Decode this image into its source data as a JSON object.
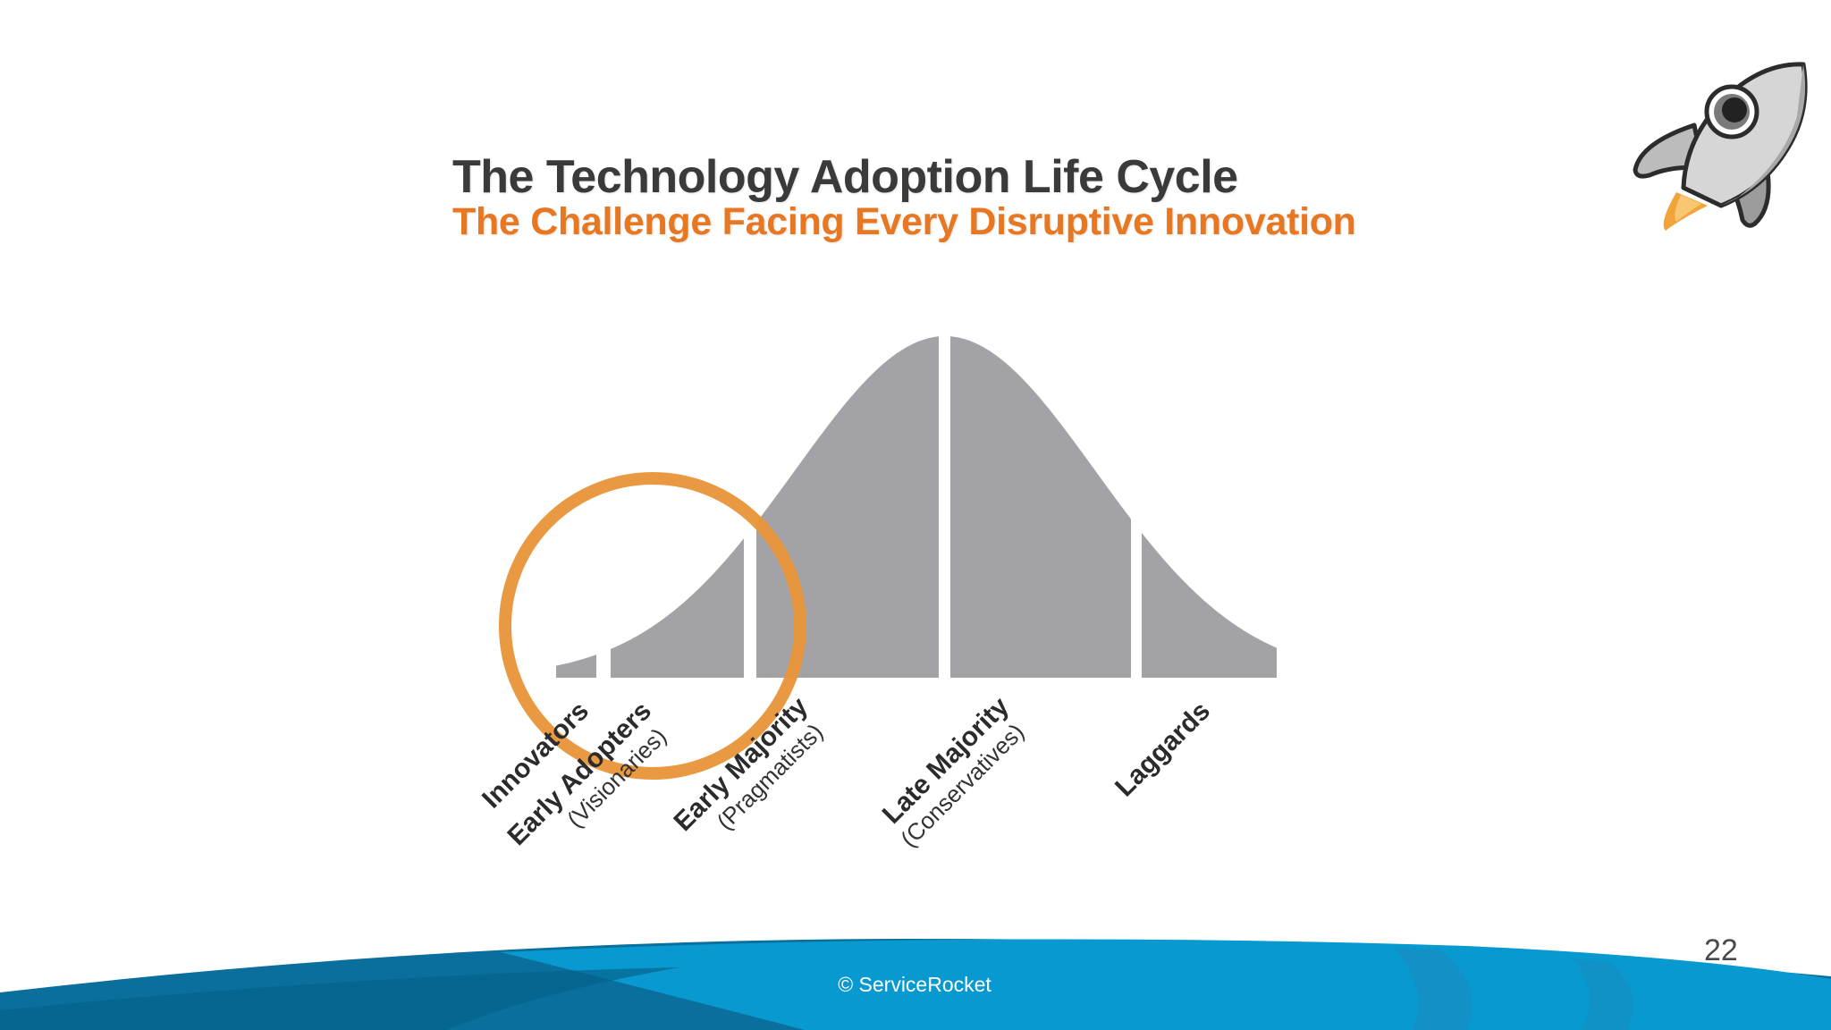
{
  "slide": {
    "title": "The Technology Adoption Life Cycle",
    "subtitle": "The Challenge Facing Every Disruptive Innovation",
    "page_number": "22",
    "footer": "© ServiceRocket"
  },
  "segments": [
    {
      "label": "Innovators",
      "sublabel": ""
    },
    {
      "label": "Early Adopters",
      "sublabel": "(Visionaries)"
    },
    {
      "label": "Early Majority",
      "sublabel": "(Pragmatists)"
    },
    {
      "label": "Late Majority",
      "sublabel": "(Conservatives)"
    },
    {
      "label": "Laggards",
      "sublabel": ""
    }
  ],
  "icons": {
    "corner_logo": "rocket-icon",
    "highlight": "highlight-circle"
  },
  "colors": {
    "title": "#3a3a3a",
    "subtitle": "#e87722",
    "curve": "#a3a2a6",
    "circle": "#e8963c",
    "wave_dark": "#0a6f9c",
    "wave_light": "#0799cf"
  }
}
